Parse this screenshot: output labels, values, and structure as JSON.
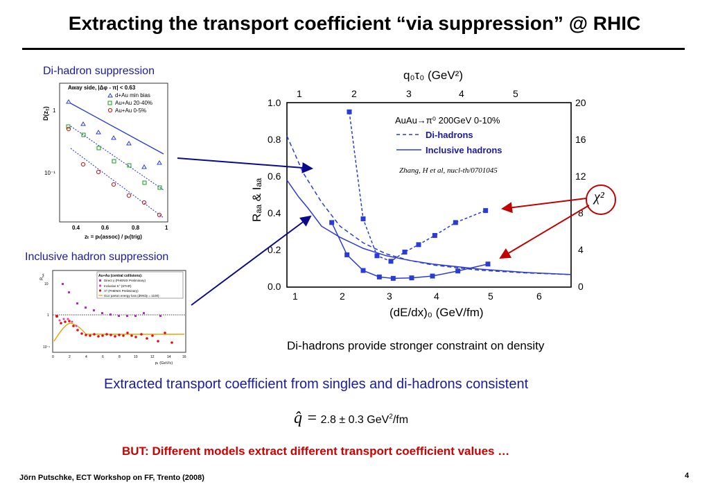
{
  "slide": {
    "title": "Extracting the transport coefficient “via suppression” @ RHIC",
    "footer": "Jörn Putschke, ECT Workshop on FF, Trento (2008)",
    "page_number": "4"
  },
  "left_panels": {
    "dihadron_label": "Di-hadron suppression",
    "inclusive_label": "Inclusive hadron suppression"
  },
  "dihadron_plot": {
    "title": "Away side, |Δφ - π| < 0.63",
    "ylabel": "D(z",
    "ylabel_sub": "T",
    "ylabel_close": ")",
    "xlabel": "zₜ = pₜ(assoc) / pₜ(trig)",
    "legend": [
      "d+Au min bias",
      "Au+Au 20-40%",
      "Au+Au 0-5%"
    ],
    "yticks": [
      "1",
      "10⁻¹"
    ],
    "xticks": [
      "0.4",
      "0.6",
      "0.8",
      "1"
    ]
  },
  "inclusive_plot": {
    "legend_title": "Au+Au (central collisions):",
    "legend": [
      "Direct γ (PHENIX Preliminary)",
      "Inclusive K° (STAR)",
      "π⁰ (PHENIX Preliminary)",
      "GLV parton energy loss (dNᵍ/dy = 1100)"
    ],
    "ylabel": "R",
    "ylabel_sub": "AA",
    "xlabel": "pₜ (GeV/c)",
    "yticks": [
      "10",
      "1",
      "10⁻¹"
    ],
    "xticks": [
      "0",
      "2",
      "4",
      "6",
      "8",
      "10",
      "12",
      "14",
      "16"
    ]
  },
  "main_plot": {
    "top_axis_label": "q₀τ₀ (GeV²)",
    "top_ticks": [
      "1",
      "2",
      "3",
      "4",
      "5"
    ],
    "bottom_label": "(dE/dx)₀ (GeV/fm)",
    "bottom_ticks": [
      "1",
      "2",
      "3",
      "4",
      "5",
      "6"
    ],
    "left_label": "Rₐₐ & Iₐₐ",
    "left_ticks": [
      "0.0",
      "0.2",
      "0.4",
      "0.6",
      "0.8",
      "1.0"
    ],
    "right_ticks": [
      "0",
      "4",
      "8",
      "12",
      "16",
      "20"
    ],
    "legend_header": "AuAu→π⁰ 200GeV 0-10%",
    "legend": [
      "Di-hadrons",
      "Inclusive hadrons"
    ],
    "citation": "Zhang, H et al, nucl-th/0701045",
    "chi_label": "χ²",
    "colors": {
      "series": "#2a3bd6",
      "arrow": "#c00000",
      "connector": "#0a0a8a"
    }
  },
  "chart_data": {
    "type": "line",
    "xlabel": "(dE/dx)₀ (GeV/fm)",
    "ylabel": "Rₐₐ & Iₐₐ",
    "xlim": [
      0.85,
      7.0
    ],
    "ylim": [
      0,
      1.0
    ],
    "series": [
      {
        "name": "Di-hadrons",
        "style": "dashed",
        "x": [
          0.85,
          1.2,
          1.6,
          2.0,
          2.5,
          3.0,
          3.5,
          4.0,
          5.0,
          6.0,
          7.0
        ],
        "y": [
          0.82,
          0.62,
          0.46,
          0.33,
          0.24,
          0.18,
          0.145,
          0.12,
          0.092,
          0.077,
          0.068
        ]
      },
      {
        "name": "Inclusive hadrons",
        "style": "solid",
        "x": [
          0.85,
          1.1,
          1.3,
          1.6,
          2.0,
          2.5,
          3.0,
          3.5,
          4.0,
          5.0,
          6.0,
          7.0
        ],
        "y": [
          0.58,
          0.49,
          0.43,
          0.33,
          0.27,
          0.21,
          0.17,
          0.145,
          0.125,
          0.098,
          0.08,
          0.068
        ]
      }
    ],
    "chi2_series": [
      {
        "style": "dashed",
        "x": [
          2.2,
          2.5,
          2.8,
          3.1,
          3.4,
          3.7,
          4.05,
          4.5,
          5.15
        ],
        "y": [
          19.0,
          7.4,
          3.4,
          2.8,
          3.8,
          4.6,
          5.6,
          7.0,
          8.3
        ]
      },
      {
        "style": "solid",
        "x": [
          1.82,
          2.15,
          2.5,
          2.85,
          3.15,
          3.55,
          4.0,
          4.55,
          5.2
        ],
        "y": [
          7.0,
          3.5,
          1.8,
          1.1,
          0.95,
          1.0,
          1.2,
          1.75,
          2.5
        ]
      }
    ],
    "chi2_ylim": [
      0,
      20
    ]
  },
  "bullets": {
    "constraint": "Di-hadrons provide stronger constraint on density",
    "consistent": "Extracted transport coefficient from singles and di-hadrons consistent",
    "qhat_symbol": "q̂ =",
    "qhat_value": "2.8 ± 0.3 GeV",
    "qhat_exp": "2",
    "qhat_unit": "/fm",
    "but": "BUT: Different models extract different transport coefficient values …"
  }
}
